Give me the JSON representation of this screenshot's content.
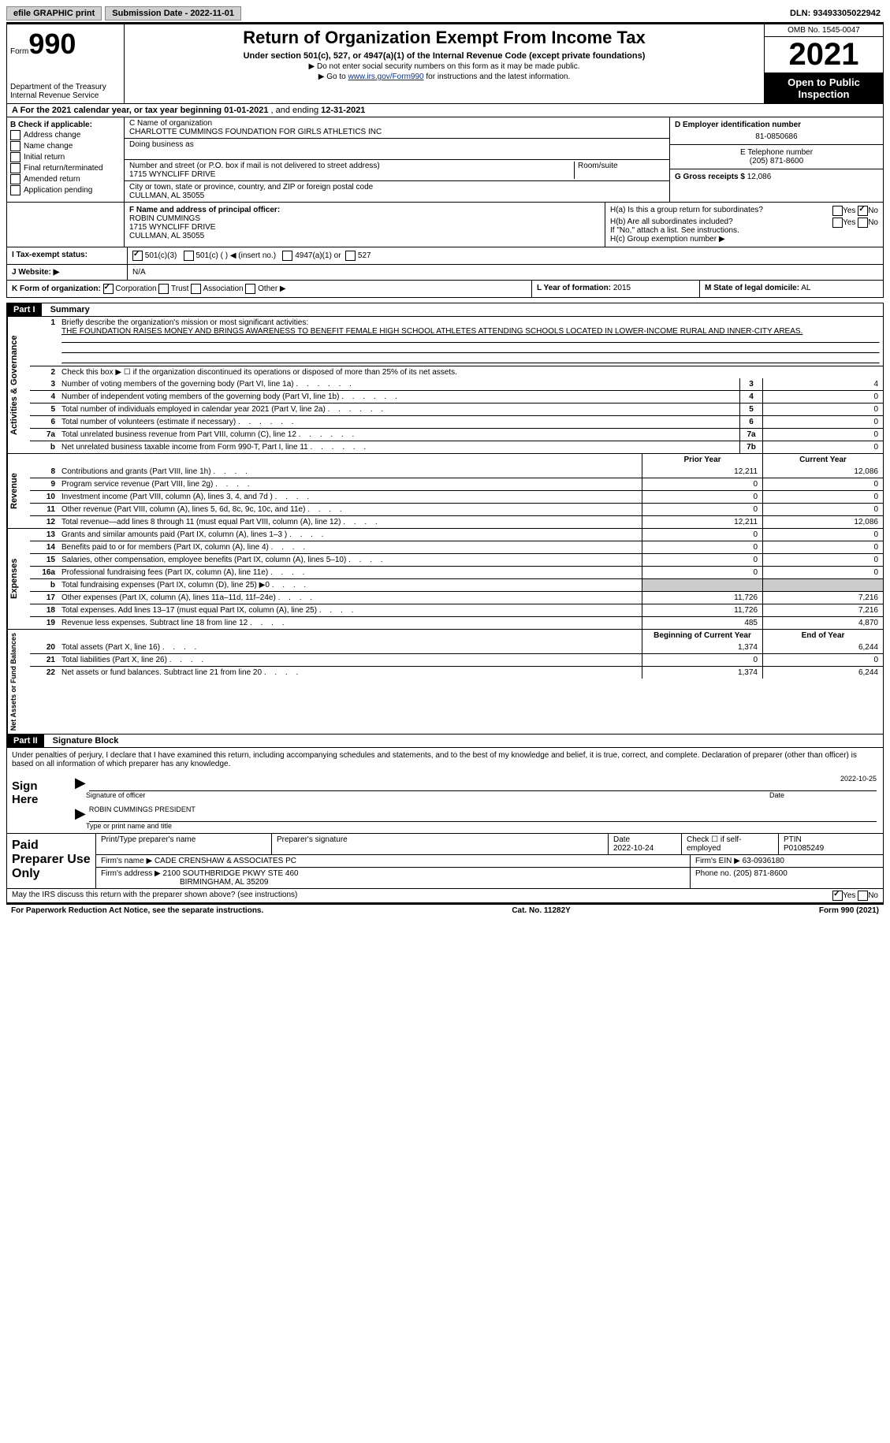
{
  "topbar": {
    "efile": "efile GRAPHIC print",
    "sub_label": "Submission Date - 2022-11-01",
    "dln_label": "DLN: 93493305022942"
  },
  "header": {
    "form_word": "Form",
    "form_num": "990",
    "dept": "Department of the Treasury",
    "irs": "Internal Revenue Service",
    "title": "Return of Organization Exempt From Income Tax",
    "subtitle": "Under section 501(c), 527, or 4947(a)(1) of the Internal Revenue Code (except private foundations)",
    "note1": "▶ Do not enter social security numbers on this form as it may be made public.",
    "note2_pre": "▶ Go to ",
    "note2_link": "www.irs.gov/Form990",
    "note2_post": " for instructions and the latest information.",
    "omb": "OMB No. 1545-0047",
    "year": "2021",
    "public": "Open to Public Inspection"
  },
  "rowA": {
    "text_pre": "A For the 2021 calendar year, or tax year beginning ",
    "begin": "01-01-2021",
    "mid": " , and ending ",
    "end": "12-31-2021"
  },
  "colB": {
    "label": "B Check if applicable:",
    "opts": [
      "Address change",
      "Name change",
      "Initial return",
      "Final return/terminated",
      "Amended return",
      "Application pending"
    ]
  },
  "colC": {
    "name_label": "C Name of organization",
    "name": "CHARLOTTE CUMMINGS FOUNDATION FOR GIRLS ATHLETICS INC",
    "dba_label": "Doing business as",
    "addr_label": "Number and street (or P.O. box if mail is not delivered to street address)",
    "room_label": "Room/suite",
    "addr": "1715 WYNCLIFF DRIVE",
    "city_label": "City or town, state or province, country, and ZIP or foreign postal code",
    "city": "CULLMAN, AL  35055"
  },
  "colD": {
    "ein_label": "D Employer identification number",
    "ein": "81-0850686",
    "tel_label": "E Telephone number",
    "tel": "(205) 871-8600",
    "gross_label": "G Gross receipts $",
    "gross": "12,086"
  },
  "rowF": {
    "label": "F Name and address of principal officer:",
    "name": "ROBIN CUMMINGS",
    "addr": "1715 WYNCLIFF DRIVE",
    "city": "CULLMAN, AL  35055"
  },
  "rowH": {
    "ha": "H(a)  Is this a group return for subordinates?",
    "hb": "H(b)  Are all subordinates included?",
    "hb_note": "If \"No,\" attach a list. See instructions.",
    "hc": "H(c)  Group exemption number ▶",
    "yes": "Yes",
    "no": "No"
  },
  "rowI": {
    "label": "I  Tax-exempt status:",
    "o1": "501(c)(3)",
    "o2": "501(c) (  ) ◀ (insert no.)",
    "o3": "4947(a)(1) or",
    "o4": "527"
  },
  "rowJ": {
    "label": "J  Website: ▶",
    "val": "N/A"
  },
  "rowK": {
    "label": "K Form of organization:",
    "opts": [
      "Corporation",
      "Trust",
      "Association",
      "Other ▶"
    ],
    "l_label": "L Year of formation:",
    "l_val": "2015",
    "m_label": "M State of legal domicile:",
    "m_val": "AL"
  },
  "part1": {
    "hdr": "Part I",
    "title": "Summary",
    "side_ag": "Activities & Governance",
    "side_rev": "Revenue",
    "side_exp": "Expenses",
    "side_net": "Net Assets or Fund Balances",
    "q1_label": "Briefly describe the organization's mission or most significant activities:",
    "q1_text": "THE FOUNDATION RAISES MONEY AND BRINGS AWARENESS TO BENEFIT FEMALE HIGH SCHOOL ATHLETES ATTENDING SCHOOLS LOCATED IN LOWER-INCOME RURAL AND INNER-CITY AREAS.",
    "q2": "Check this box ▶ ☐ if the organization discontinued its operations or disposed of more than 25% of its net assets.",
    "lines_ag": [
      {
        "n": "3",
        "t": "Number of voting members of the governing body (Part VI, line 1a)",
        "box": "3",
        "v": "4"
      },
      {
        "n": "4",
        "t": "Number of independent voting members of the governing body (Part VI, line 1b)",
        "box": "4",
        "v": "0"
      },
      {
        "n": "5",
        "t": "Total number of individuals employed in calendar year 2021 (Part V, line 2a)",
        "box": "5",
        "v": "0"
      },
      {
        "n": "6",
        "t": "Total number of volunteers (estimate if necessary)",
        "box": "6",
        "v": "0"
      },
      {
        "n": "7a",
        "t": "Total unrelated business revenue from Part VIII, column (C), line 12",
        "box": "7a",
        "v": "0"
      },
      {
        "n": "b",
        "t": "Net unrelated business taxable income from Form 990-T, Part I, line 11",
        "box": "7b",
        "v": "0"
      }
    ],
    "prior_hdr": "Prior Year",
    "curr_hdr": "Current Year",
    "lines_rev": [
      {
        "n": "8",
        "t": "Contributions and grants (Part VIII, line 1h)",
        "p": "12,211",
        "c": "12,086"
      },
      {
        "n": "9",
        "t": "Program service revenue (Part VIII, line 2g)",
        "p": "0",
        "c": "0"
      },
      {
        "n": "10",
        "t": "Investment income (Part VIII, column (A), lines 3, 4, and 7d )",
        "p": "0",
        "c": "0"
      },
      {
        "n": "11",
        "t": "Other revenue (Part VIII, column (A), lines 5, 6d, 8c, 9c, 10c, and 11e)",
        "p": "0",
        "c": "0"
      },
      {
        "n": "12",
        "t": "Total revenue—add lines 8 through 11 (must equal Part VIII, column (A), line 12)",
        "p": "12,211",
        "c": "12,086"
      }
    ],
    "lines_exp": [
      {
        "n": "13",
        "t": "Grants and similar amounts paid (Part IX, column (A), lines 1–3 )",
        "p": "0",
        "c": "0"
      },
      {
        "n": "14",
        "t": "Benefits paid to or for members (Part IX, column (A), line 4)",
        "p": "0",
        "c": "0"
      },
      {
        "n": "15",
        "t": "Salaries, other compensation, employee benefits (Part IX, column (A), lines 5–10)",
        "p": "0",
        "c": "0"
      },
      {
        "n": "16a",
        "t": "Professional fundraising fees (Part IX, column (A), line 11e)",
        "p": "0",
        "c": "0"
      },
      {
        "n": "b",
        "t": "Total fundraising expenses (Part IX, column (D), line 25) ▶0",
        "p": "shade",
        "c": "shade"
      },
      {
        "n": "17",
        "t": "Other expenses (Part IX, column (A), lines 11a–11d, 11f–24e)",
        "p": "11,726",
        "c": "7,216"
      },
      {
        "n": "18",
        "t": "Total expenses. Add lines 13–17 (must equal Part IX, column (A), line 25)",
        "p": "11,726",
        "c": "7,216"
      },
      {
        "n": "19",
        "t": "Revenue less expenses. Subtract line 18 from line 12",
        "p": "485",
        "c": "4,870"
      }
    ],
    "beg_hdr": "Beginning of Current Year",
    "end_hdr": "End of Year",
    "lines_net": [
      {
        "n": "20",
        "t": "Total assets (Part X, line 16)",
        "p": "1,374",
        "c": "6,244"
      },
      {
        "n": "21",
        "t": "Total liabilities (Part X, line 26)",
        "p": "0",
        "c": "0"
      },
      {
        "n": "22",
        "t": "Net assets or fund balances. Subtract line 21 from line 20",
        "p": "1,374",
        "c": "6,244"
      }
    ]
  },
  "part2": {
    "hdr": "Part II",
    "title": "Signature Block",
    "decl": "Under penalties of perjury, I declare that I have examined this return, including accompanying schedules and statements, and to the best of my knowledge and belief, it is true, correct, and complete. Declaration of preparer (other than officer) is based on all information of which preparer has any knowledge.",
    "sign": "Sign Here",
    "sig_officer": "Signature of officer",
    "sig_date": "Date",
    "sig_date_v": "2022-10-25",
    "officer_name": "ROBIN CUMMINGS  PRESIDENT",
    "type_name": "Type or print name and title"
  },
  "paid": {
    "label": "Paid Preparer Use Only",
    "h_name": "Print/Type preparer's name",
    "h_sig": "Preparer's signature",
    "h_date": "Date",
    "h_date_v": "2022-10-24",
    "h_check": "Check ☐ if self-employed",
    "h_ptin": "PTIN",
    "ptin": "P01085249",
    "firm_name_l": "Firm's name    ▶",
    "firm_name": "CADE CRENSHAW & ASSOCIATES PC",
    "firm_ein_l": "Firm's EIN ▶",
    "firm_ein": "63-0936180",
    "firm_addr_l": "Firm's address ▶",
    "firm_addr": "2100 SOUTHBRIDGE PKWY STE 460",
    "firm_city": "BIRMINGHAM, AL  35209",
    "phone_l": "Phone no.",
    "phone": "(205) 871-8600"
  },
  "footer": {
    "discuss": "May the IRS discuss this return with the preparer shown above? (see instructions)",
    "yes": "Yes",
    "no": "No",
    "pra": "For Paperwork Reduction Act Notice, see the separate instructions.",
    "cat": "Cat. No. 11282Y",
    "form": "Form 990 (2021)"
  }
}
